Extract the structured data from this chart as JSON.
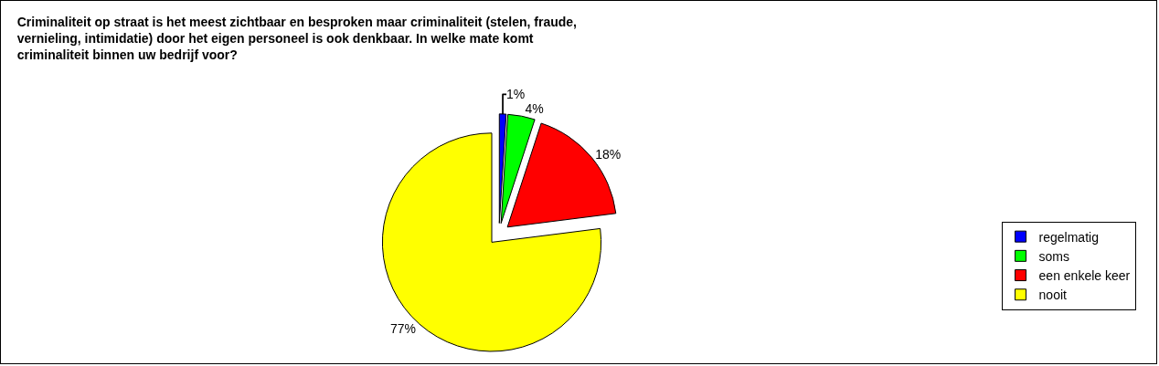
{
  "chart_data": {
    "type": "pie",
    "title": "Criminaliteit op straat is het meest zichtbaar en besproken maar criminaliteit (stelen, fraude, vernieling, intimidatie) door het eigen personeel is ook denkbaar. In welke mate komt criminaliteit binnen uw bedrijf voor?",
    "categories": [
      "regelmatig",
      "soms",
      "een enkele keer",
      "nooit"
    ],
    "values": [
      1,
      4,
      18,
      77
    ],
    "value_labels": [
      "1%",
      "4%",
      "18%",
      "77%"
    ],
    "colors": [
      "#0000ff",
      "#00ff00",
      "#ff0000",
      "#ffff00"
    ],
    "legend": "right"
  }
}
